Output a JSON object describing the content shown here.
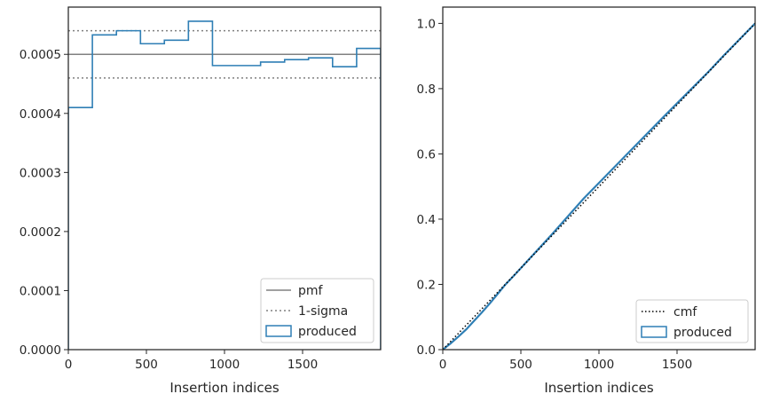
{
  "chart_data": [
    {
      "type": "line",
      "xlabel": "Insertion indices",
      "ylabel": "",
      "xlim": [
        0,
        2000
      ],
      "ylim": [
        0,
        0.00058
      ],
      "grid": false,
      "legend_placement": "bottom-right",
      "xticks": [
        0,
        500,
        1000,
        1500
      ],
      "xtick_labels": [
        "0",
        "500",
        "1000",
        "1500"
      ],
      "yticks": [
        0,
        0.0001,
        0.0002,
        0.0003,
        0.0004,
        0.0005
      ],
      "ytick_labels": [
        "0.0000",
        "0.0001",
        "0.0002",
        "0.0003",
        "0.0004",
        "0.0005"
      ],
      "reference_lines": [
        {
          "label": "pmf",
          "y": 0.0005,
          "style": "solid",
          "color": "#808080"
        },
        {
          "label": "1-sigma",
          "y": 0.00054,
          "style": "dotted",
          "color": "#808080"
        },
        {
          "label": "",
          "y": 0.00046,
          "style": "dotted",
          "color": "#808080"
        }
      ],
      "series": [
        {
          "name": "produced",
          "kind": "step-histogram",
          "color": "#2f7fb5",
          "bin_edges": [
            0,
            154,
            308,
            462,
            615,
            769,
            923,
            1077,
            1231,
            1385,
            1538,
            1692,
            1846,
            2000
          ],
          "values": [
            0.00041,
            0.000533,
            0.00054,
            0.000518,
            0.000524,
            0.000556,
            0.000481,
            0.000481,
            0.000487,
            0.000491,
            0.000494,
            0.000479,
            0.00051
          ]
        }
      ]
    },
    {
      "type": "line",
      "xlabel": "Insertion indices",
      "ylabel": "",
      "xlim": [
        0,
        2000
      ],
      "ylim": [
        0,
        1.05
      ],
      "grid": false,
      "legend_placement": "bottom-right",
      "xticks": [
        0,
        500,
        1000,
        1500
      ],
      "xtick_labels": [
        "0",
        "500",
        "1000",
        "1500"
      ],
      "yticks": [
        0,
        0.2,
        0.4,
        0.6,
        0.8,
        1.0
      ],
      "ytick_labels": [
        "0.0",
        "0.2",
        "0.4",
        "0.6",
        "0.8",
        "1.0"
      ],
      "series": [
        {
          "name": "cmf",
          "style": "dotted",
          "color": "#000000",
          "x": [
            0,
            2000
          ],
          "y": [
            0,
            1.0
          ]
        },
        {
          "name": "produced",
          "style": "solid",
          "color": "#2f7fb5",
          "x": [
            0,
            50,
            100,
            150,
            200,
            250,
            300,
            350,
            400,
            450,
            500,
            600,
            700,
            800,
            900,
            1000,
            1100,
            1200,
            1300,
            1400,
            1500,
            1600,
            1700,
            1800,
            1900,
            2000
          ],
          "y": [
            0,
            0.019,
            0.04,
            0.062,
            0.088,
            0.114,
            0.141,
            0.17,
            0.199,
            0.224,
            0.25,
            0.302,
            0.354,
            0.408,
            0.462,
            0.511,
            0.56,
            0.609,
            0.658,
            0.707,
            0.755,
            0.803,
            0.851,
            0.902,
            0.951,
            1.0
          ]
        }
      ]
    }
  ]
}
